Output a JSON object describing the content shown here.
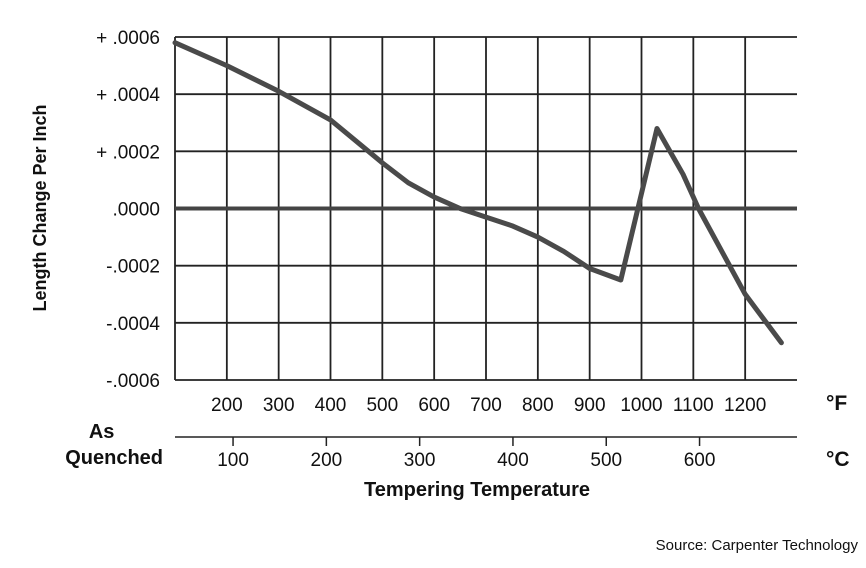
{
  "chart_data": {
    "type": "line",
    "ylabel": "Length Change Per Inch",
    "xlabel": "Tempering Temperature",
    "x_unit_primary": "°F",
    "x_unit_secondary": "°C",
    "x_start_label": "As Quenched",
    "xlim": [
      100,
      1300
    ],
    "ylim": [
      -0.0006,
      0.0006
    ],
    "y_ticks": [
      0.0006,
      0.0004,
      0.0002,
      0.0,
      -0.0002,
      -0.0004,
      -0.0006
    ],
    "y_tick_labels": [
      "+ .0006",
      "+ .0004",
      "+ .0002",
      ".0000",
      "-.0002",
      "-.0004",
      "-.0006"
    ],
    "x_ticks_f": [
      200,
      300,
      400,
      500,
      600,
      700,
      800,
      900,
      1000,
      1100,
      1200
    ],
    "x_tick_labels_f": [
      "200",
      "300",
      "400",
      "500",
      "600",
      "700",
      "800",
      "900",
      "1000",
      "1100",
      "1200"
    ],
    "x_ticks_c_in_f": [
      212,
      392,
      572,
      752,
      932,
      1112
    ],
    "x_tick_labels_c": [
      "100",
      "200",
      "300",
      "400",
      "500",
      "600"
    ],
    "grid": true,
    "series": [
      {
        "x": [
          100,
          200,
          300,
          400,
          500,
          550,
          600,
          650,
          700,
          750,
          800,
          850,
          900,
          960,
          1030,
          1080,
          1110,
          1200,
          1270
        ],
        "y": [
          0.00058,
          0.0005,
          0.00041,
          0.00031,
          0.00016,
          9e-05,
          4e-05,
          0.0,
          -3e-05,
          -6e-05,
          -0.0001,
          -0.00015,
          -0.00021,
          -0.00025,
          0.00028,
          0.00012,
          0.0,
          -0.0003,
          -0.00047
        ]
      }
    ],
    "source": "Source: Carpenter Technology"
  }
}
